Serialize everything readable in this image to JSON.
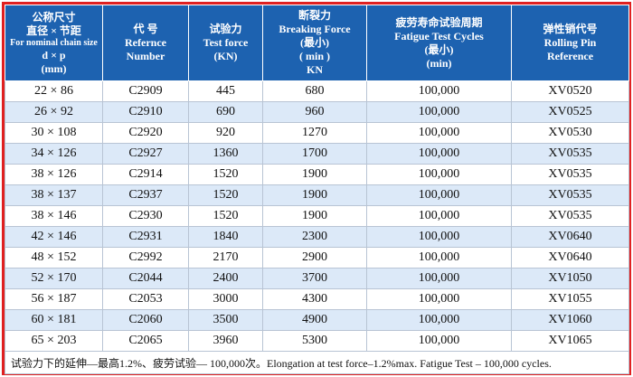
{
  "table": {
    "header": [
      [
        "公称尺寸",
        "直径 × 节距",
        "For nominal chain size",
        "d × p",
        "(mm)"
      ],
      [
        "代 号",
        "Refernce",
        "Number"
      ],
      [
        "试验力",
        "Test force",
        "(KN)"
      ],
      [
        "断裂力",
        "Breaking Force",
        "(最小)",
        "( min )",
        "KN"
      ],
      [
        "疲劳寿命试验周期",
        "Fatigue Test Cycles",
        "(最小)",
        "(min)"
      ],
      [
        "弹性销代号",
        "Rolling Pin",
        "Reference"
      ]
    ],
    "rows": [
      [
        "22 × 86",
        "C2909",
        445,
        680,
        "100,000",
        "XV0520"
      ],
      [
        "26 × 92",
        "C2910",
        690,
        960,
        "100,000",
        "XV0525"
      ],
      [
        "30 × 108",
        "C2920",
        920,
        1270,
        "100,000",
        "XV0530"
      ],
      [
        "34 × 126",
        "C2927",
        1360,
        1700,
        "100,000",
        "XV0535"
      ],
      [
        "38 × 126",
        "C2914",
        1520,
        1900,
        "100,000",
        "XV0535"
      ],
      [
        "38 × 137",
        "C2937",
        1520,
        1900,
        "100,000",
        "XV0535"
      ],
      [
        "38 × 146",
        "C2930",
        1520,
        1900,
        "100,000",
        "XV0535"
      ],
      [
        "42 × 146",
        "C2931",
        1840,
        2300,
        "100,000",
        "XV0640"
      ],
      [
        "48 × 152",
        "C2992",
        2170,
        2900,
        "100,000",
        "XV0640"
      ],
      [
        "52 × 170",
        "C2044",
        2400,
        3700,
        "100,000",
        "XV1050"
      ],
      [
        "56 × 187",
        "C2053",
        3000,
        4300,
        "100,000",
        "XV1055"
      ],
      [
        "60 × 181",
        "C2060",
        3500,
        4900,
        "100,000",
        "XV1060"
      ],
      [
        "65 × 203",
        "C2065",
        3960,
        5300,
        "100,000",
        "XV1065"
      ]
    ],
    "footer": "试验力下的延伸—最高1.2%、疲劳试验— 100,000次。Elongation at test force–1.2%max. Fatigue Test – 100,000 cycles."
  }
}
